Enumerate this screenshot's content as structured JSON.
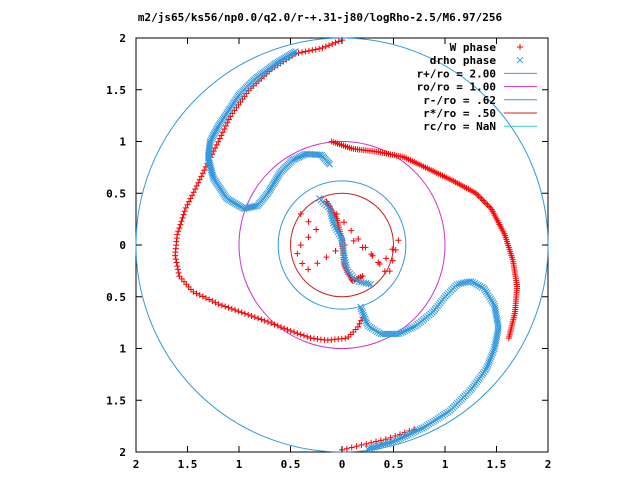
{
  "chart_data": {
    "type": "scatter",
    "title": "m2/js65/ks56/np0.0/q2.0/r-+.31-j80/logRho-2.5/M6.97/256",
    "xlim": [
      -2,
      2
    ],
    "ylim": [
      -2,
      2
    ],
    "x_tick_labels": [
      "2",
      "1.5",
      "1",
      "0.5",
      "0",
      "0.5",
      "1",
      "1.5",
      "2"
    ],
    "y_tick_labels": [
      "2",
      "1.5",
      "1",
      "0.5",
      "0",
      "0.5",
      "1",
      "1.5",
      "2"
    ],
    "x_ticks": [
      -2,
      -1.5,
      -1,
      -0.5,
      0,
      0.5,
      1,
      1.5,
      2
    ],
    "y_ticks": [
      2,
      1.5,
      1,
      0.5,
      0,
      -0.5,
      -1,
      -1.5,
      -2
    ],
    "grid": false,
    "legend_position": "top-right",
    "series": [
      {
        "name": "W phase",
        "marker": "plus",
        "color": "#ff0000",
        "arms": [
          {
            "points": [
              [
                0.0,
                1.98
              ],
              [
                -0.2,
                1.9
              ],
              [
                -0.45,
                1.85
              ],
              [
                -0.68,
                1.7
              ],
              [
                -0.9,
                1.5
              ],
              [
                -1.08,
                1.25
              ],
              [
                -1.2,
                1.0
              ],
              [
                -1.3,
                0.8
              ],
              [
                -1.42,
                0.55
              ],
              [
                -1.52,
                0.35
              ],
              [
                -1.6,
                0.1
              ],
              [
                -1.62,
                -0.1
              ],
              [
                -1.58,
                -0.3
              ],
              [
                -1.45,
                -0.45
              ],
              [
                -1.2,
                -0.57
              ],
              [
                -0.95,
                -0.66
              ],
              [
                -0.7,
                -0.75
              ],
              [
                -0.5,
                -0.83
              ],
              [
                -0.3,
                -0.9
              ],
              [
                -0.15,
                -0.92
              ],
              [
                0.05,
                -0.9
              ],
              [
                0.15,
                -0.8
              ],
              [
                0.2,
                -0.7
              ]
            ],
            "n": 150
          },
          {
            "points": [
              [
                -0.1,
                1.0
              ],
              [
                0.1,
                0.93
              ],
              [
                0.35,
                0.9
              ],
              [
                0.6,
                0.85
              ],
              [
                0.85,
                0.73
              ],
              [
                1.08,
                0.62
              ],
              [
                1.3,
                0.5
              ],
              [
                1.45,
                0.35
              ],
              [
                1.58,
                0.1
              ],
              [
                1.66,
                -0.15
              ],
              [
                1.7,
                -0.4
              ],
              [
                1.68,
                -0.65
              ],
              [
                1.62,
                -0.9
              ]
            ],
            "n": 150
          },
          {
            "points": [
              [
                0.0,
                -1.98
              ],
              [
                0.2,
                -1.93
              ],
              [
                0.45,
                -1.87
              ],
              [
                0.7,
                -1.78
              ]
            ],
            "n": 16
          },
          {
            "points": [
              [
                -0.15,
                0.42
              ],
              [
                -0.05,
                0.25
              ],
              [
                0.0,
                0.05
              ],
              [
                0.02,
                -0.2
              ],
              [
                0.1,
                -0.35
              ],
              [
                0.2,
                -0.3
              ]
            ],
            "n": 45
          },
          {
            "points": [
              [
                -0.4,
                0.3
              ],
              [
                -0.25,
                0.15
              ],
              [
                -0.45,
                -0.05
              ],
              [
                -0.35,
                -0.25
              ],
              [
                0.1,
                0.05
              ],
              [
                0.3,
                -0.1
              ],
              [
                0.45,
                -0.3
              ],
              [
                0.55,
                0.05
              ],
              [
                0.38,
                -0.2
              ],
              [
                -0.05,
                0.3
              ]
            ],
            "n": 30
          }
        ]
      },
      {
        "name": "drho phase",
        "marker": "x",
        "color": "#3399dd",
        "arms": [
          {
            "points": [
              [
                -0.45,
                1.87
              ],
              [
                -0.65,
                1.75
              ],
              [
                -0.85,
                1.6
              ],
              [
                -1.0,
                1.45
              ],
              [
                -1.1,
                1.3
              ],
              [
                -1.2,
                1.15
              ],
              [
                -1.28,
                1.0
              ],
              [
                -1.3,
                0.85
              ],
              [
                -1.25,
                0.65
              ],
              [
                -1.12,
                0.45
              ],
              [
                -0.95,
                0.35
              ],
              [
                -0.82,
                0.38
              ],
              [
                -0.72,
                0.5
              ],
              [
                -0.6,
                0.7
              ],
              [
                -0.48,
                0.82
              ],
              [
                -0.35,
                0.88
              ],
              [
                -0.2,
                0.87
              ],
              [
                -0.12,
                0.78
              ]
            ],
            "n": 190
          },
          {
            "points": [
              [
                0.18,
                -0.6
              ],
              [
                0.25,
                -0.78
              ],
              [
                0.38,
                -0.86
              ],
              [
                0.55,
                -0.86
              ],
              [
                0.72,
                -0.78
              ],
              [
                0.88,
                -0.65
              ],
              [
                1.0,
                -0.5
              ],
              [
                1.12,
                -0.38
              ],
              [
                1.25,
                -0.35
              ],
              [
                1.38,
                -0.42
              ],
              [
                1.48,
                -0.58
              ],
              [
                1.52,
                -0.8
              ],
              [
                1.48,
                -1.0
              ],
              [
                1.4,
                -1.2
              ],
              [
                1.25,
                -1.4
              ],
              [
                1.05,
                -1.6
              ],
              [
                0.8,
                -1.76
              ],
              [
                0.5,
                -1.9
              ],
              [
                0.25,
                -1.97
              ]
            ],
            "n": 190
          },
          {
            "points": [
              [
                -0.22,
                0.45
              ],
              [
                -0.12,
                0.35
              ],
              [
                -0.08,
                0.2
              ],
              [
                0.0,
                0.05
              ],
              [
                0.02,
                -0.1
              ],
              [
                0.05,
                -0.25
              ],
              [
                0.15,
                -0.35
              ],
              [
                0.28,
                -0.38
              ]
            ],
            "n": 45
          }
        ]
      }
    ],
    "circles": [
      {
        "label": "r+/ro = 2.00",
        "r": 2.0,
        "color": "#3399dd"
      },
      {
        "label": "ro/ro = 1.00",
        "r": 1.0,
        "color": "#cc33cc"
      },
      {
        "label": "r-/ro = .62",
        "r": 0.62,
        "color": "#3399dd"
      },
      {
        "label": "r*/ro = .50",
        "r": 0.5,
        "color": "#cc2222"
      },
      {
        "label": "rc/ro = NaN",
        "r": null,
        "color": "#33cccc"
      }
    ]
  }
}
